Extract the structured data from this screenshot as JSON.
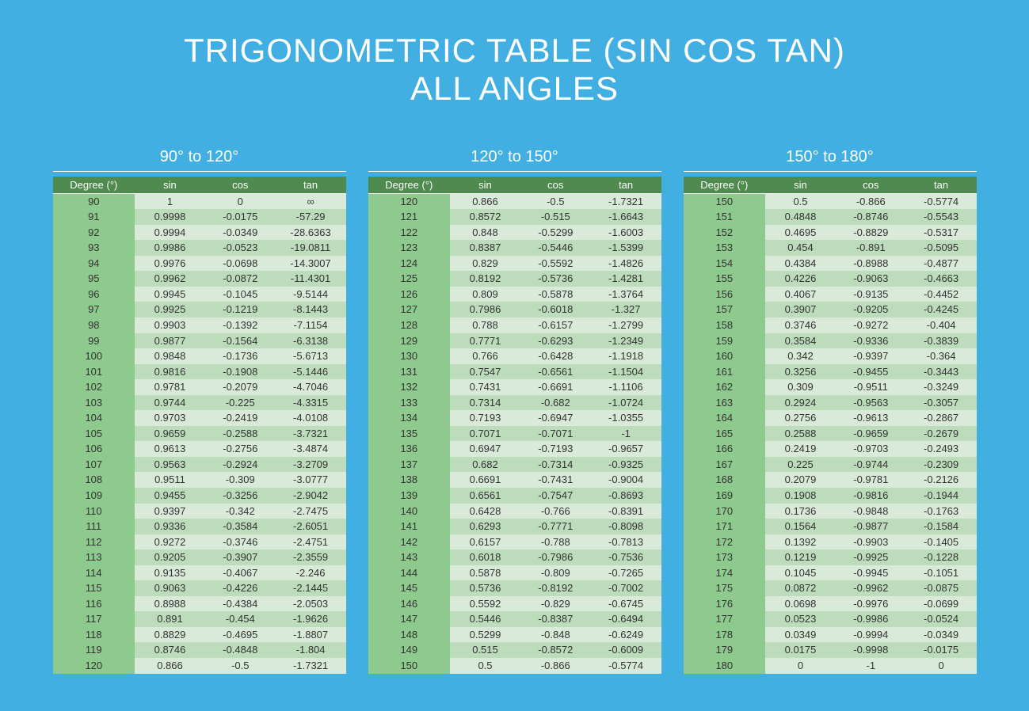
{
  "background_color": "#42afe3",
  "title_line1": "TRIGONOMETRIC TABLE (SIN COS TAN)",
  "title_line2": "ALL ANGLES",
  "headers": [
    "Degree (°)",
    "sin",
    "cos",
    "tan"
  ],
  "colors": {
    "header_bg": "#4f8a4f",
    "degree_col_bg": "#8ec98e",
    "row_odd_bg": "#d9ead9",
    "row_even_bg": "#bcdcbc",
    "title_color": "#ffffff",
    "text_color": "#333333"
  },
  "panels": [
    {
      "label": "90° to 120°",
      "rows": [
        [
          "90",
          "1",
          "0",
          "∞"
        ],
        [
          "91",
          "0.9998",
          "-0.0175",
          "-57.29"
        ],
        [
          "92",
          "0.9994",
          "-0.0349",
          "-28.6363"
        ],
        [
          "93",
          "0.9986",
          "-0.0523",
          "-19.0811"
        ],
        [
          "94",
          "0.9976",
          "-0.0698",
          "-14.3007"
        ],
        [
          "95",
          "0.9962",
          "-0.0872",
          "-11.4301"
        ],
        [
          "96",
          "0.9945",
          "-0.1045",
          "-9.5144"
        ],
        [
          "97",
          "0.9925",
          "-0.1219",
          "-8.1443"
        ],
        [
          "98",
          "0.9903",
          "-0.1392",
          "-7.1154"
        ],
        [
          "99",
          "0.9877",
          "-0.1564",
          "-6.3138"
        ],
        [
          "100",
          "0.9848",
          "-0.1736",
          "-5.6713"
        ],
        [
          "101",
          "0.9816",
          "-0.1908",
          "-5.1446"
        ],
        [
          "102",
          "0.9781",
          "-0.2079",
          "-4.7046"
        ],
        [
          "103",
          "0.9744",
          "-0.225",
          "-4.3315"
        ],
        [
          "104",
          "0.9703",
          "-0.2419",
          "-4.0108"
        ],
        [
          "105",
          "0.9659",
          "-0.2588",
          "-3.7321"
        ],
        [
          "106",
          "0.9613",
          "-0.2756",
          "-3.4874"
        ],
        [
          "107",
          "0.9563",
          "-0.2924",
          "-3.2709"
        ],
        [
          "108",
          "0.9511",
          "-0.309",
          "-3.0777"
        ],
        [
          "109",
          "0.9455",
          "-0.3256",
          "-2.9042"
        ],
        [
          "110",
          "0.9397",
          "-0.342",
          "-2.7475"
        ],
        [
          "111",
          "0.9336",
          "-0.3584",
          "-2.6051"
        ],
        [
          "112",
          "0.9272",
          "-0.3746",
          "-2.4751"
        ],
        [
          "113",
          "0.9205",
          "-0.3907",
          "-2.3559"
        ],
        [
          "114",
          "0.9135",
          "-0.4067",
          "-2.246"
        ],
        [
          "115",
          "0.9063",
          "-0.4226",
          "-2.1445"
        ],
        [
          "116",
          "0.8988",
          "-0.4384",
          "-2.0503"
        ],
        [
          "117",
          "0.891",
          "-0.454",
          "-1.9626"
        ],
        [
          "118",
          "0.8829",
          "-0.4695",
          "-1.8807"
        ],
        [
          "119",
          "0.8746",
          "-0.4848",
          "-1.804"
        ],
        [
          "120",
          "0.866",
          "-0.5",
          "-1.7321"
        ]
      ]
    },
    {
      "label": "120° to 150°",
      "rows": [
        [
          "120",
          "0.866",
          "-0.5",
          "-1.7321"
        ],
        [
          "121",
          "0.8572",
          "-0.515",
          "-1.6643"
        ],
        [
          "122",
          "0.848",
          "-0.5299",
          "-1.6003"
        ],
        [
          "123",
          "0.8387",
          "-0.5446",
          "-1.5399"
        ],
        [
          "124",
          "0.829",
          "-0.5592",
          "-1.4826"
        ],
        [
          "125",
          "0.8192",
          "-0.5736",
          "-1.4281"
        ],
        [
          "126",
          "0.809",
          "-0.5878",
          "-1.3764"
        ],
        [
          "127",
          "0.7986",
          "-0.6018",
          "-1.327"
        ],
        [
          "128",
          "0.788",
          "-0.6157",
          "-1.2799"
        ],
        [
          "129",
          "0.7771",
          "-0.6293",
          "-1.2349"
        ],
        [
          "130",
          "0.766",
          "-0.6428",
          "-1.1918"
        ],
        [
          "131",
          "0.7547",
          "-0.6561",
          "-1.1504"
        ],
        [
          "132",
          "0.7431",
          "-0.6691",
          "-1.1106"
        ],
        [
          "133",
          "0.7314",
          "-0.682",
          "-1.0724"
        ],
        [
          "134",
          "0.7193",
          "-0.6947",
          "-1.0355"
        ],
        [
          "135",
          "0.7071",
          "-0.7071",
          "-1"
        ],
        [
          "136",
          "0.6947",
          "-0.7193",
          "-0.9657"
        ],
        [
          "137",
          "0.682",
          "-0.7314",
          "-0.9325"
        ],
        [
          "138",
          "0.6691",
          "-0.7431",
          "-0.9004"
        ],
        [
          "139",
          "0.6561",
          "-0.7547",
          "-0.8693"
        ],
        [
          "140",
          "0.6428",
          "-0.766",
          "-0.8391"
        ],
        [
          "141",
          "0.6293",
          "-0.7771",
          "-0.8098"
        ],
        [
          "142",
          "0.6157",
          "-0.788",
          "-0.7813"
        ],
        [
          "143",
          "0.6018",
          "-0.7986",
          "-0.7536"
        ],
        [
          "144",
          "0.5878",
          "-0.809",
          "-0.7265"
        ],
        [
          "145",
          "0.5736",
          "-0.8192",
          "-0.7002"
        ],
        [
          "146",
          "0.5592",
          "-0.829",
          "-0.6745"
        ],
        [
          "147",
          "0.5446",
          "-0.8387",
          "-0.6494"
        ],
        [
          "148",
          "0.5299",
          "-0.848",
          "-0.6249"
        ],
        [
          "149",
          "0.515",
          "-0.8572",
          "-0.6009"
        ],
        [
          "150",
          "0.5",
          "-0.866",
          "-0.5774"
        ]
      ]
    },
    {
      "label": "150° to 180°",
      "rows": [
        [
          "150",
          "0.5",
          "-0.866",
          "-0.5774"
        ],
        [
          "151",
          "0.4848",
          "-0.8746",
          "-0.5543"
        ],
        [
          "152",
          "0.4695",
          "-0.8829",
          "-0.5317"
        ],
        [
          "153",
          "0.454",
          "-0.891",
          "-0.5095"
        ],
        [
          "154",
          "0.4384",
          "-0.8988",
          "-0.4877"
        ],
        [
          "155",
          "0.4226",
          "-0.9063",
          "-0.4663"
        ],
        [
          "156",
          "0.4067",
          "-0.9135",
          "-0.4452"
        ],
        [
          "157",
          "0.3907",
          "-0.9205",
          "-0.4245"
        ],
        [
          "158",
          "0.3746",
          "-0.9272",
          "-0.404"
        ],
        [
          "159",
          "0.3584",
          "-0.9336",
          "-0.3839"
        ],
        [
          "160",
          "0.342",
          "-0.9397",
          "-0.364"
        ],
        [
          "161",
          "0.3256",
          "-0.9455",
          "-0.3443"
        ],
        [
          "162",
          "0.309",
          "-0.9511",
          "-0.3249"
        ],
        [
          "163",
          "0.2924",
          "-0.9563",
          "-0.3057"
        ],
        [
          "164",
          "0.2756",
          "-0.9613",
          "-0.2867"
        ],
        [
          "165",
          "0.2588",
          "-0.9659",
          "-0.2679"
        ],
        [
          "166",
          "0.2419",
          "-0.9703",
          "-0.2493"
        ],
        [
          "167",
          "0.225",
          "-0.9744",
          "-0.2309"
        ],
        [
          "168",
          "0.2079",
          "-0.9781",
          "-0.2126"
        ],
        [
          "169",
          "0.1908",
          "-0.9816",
          "-0.1944"
        ],
        [
          "170",
          "0.1736",
          "-0.9848",
          "-0.1763"
        ],
        [
          "171",
          "0.1564",
          "-0.9877",
          "-0.1584"
        ],
        [
          "172",
          "0.1392",
          "-0.9903",
          "-0.1405"
        ],
        [
          "173",
          "0.1219",
          "-0.9925",
          "-0.1228"
        ],
        [
          "174",
          "0.1045",
          "-0.9945",
          "-0.1051"
        ],
        [
          "175",
          "0.0872",
          "-0.9962",
          "-0.0875"
        ],
        [
          "176",
          "0.0698",
          "-0.9976",
          "-0.0699"
        ],
        [
          "177",
          "0.0523",
          "-0.9986",
          "-0.0524"
        ],
        [
          "178",
          "0.0349",
          "-0.9994",
          "-0.0349"
        ],
        [
          "179",
          "0.0175",
          "-0.9998",
          "-0.0175"
        ],
        [
          "180",
          "0",
          "-1",
          "0"
        ]
      ]
    }
  ]
}
